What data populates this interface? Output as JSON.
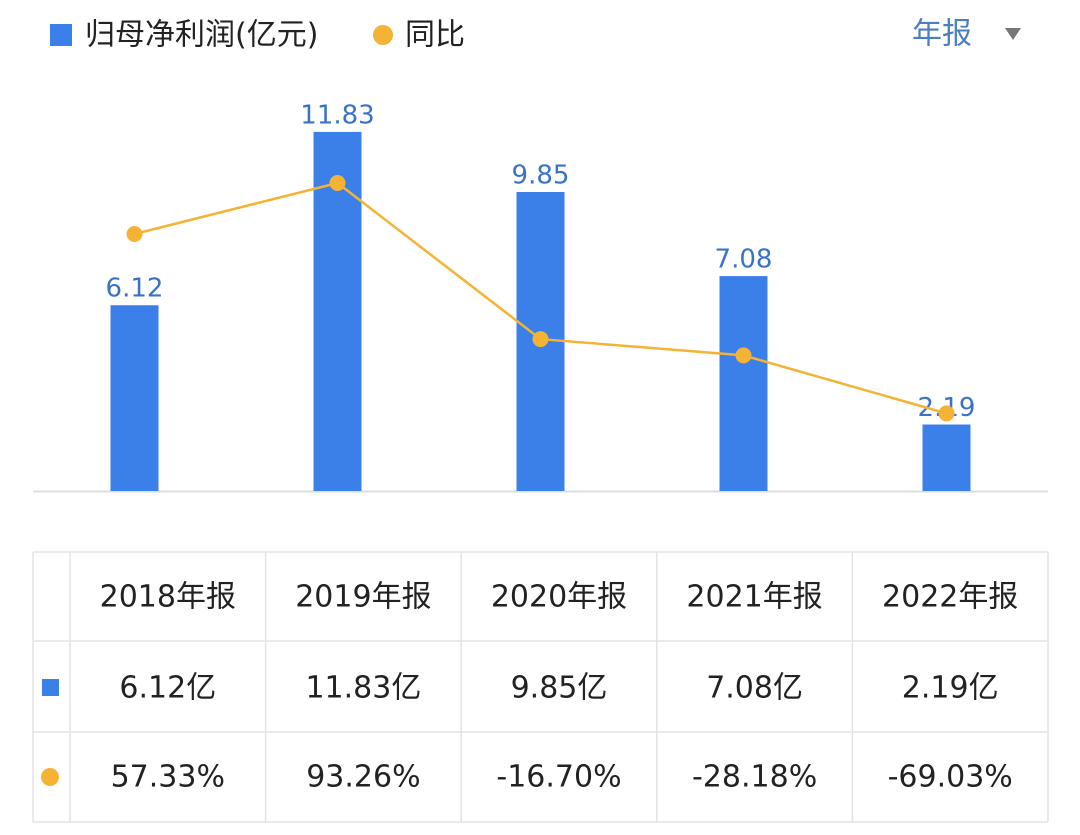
{
  "chart_data": {
    "type": "bar-line",
    "categories": [
      "2018年报",
      "2019年报",
      "2020年报",
      "2021年报",
      "2022年报"
    ],
    "series": [
      {
        "name": "归母净利润(亿元)",
        "color": "#3b7fe8",
        "type": "bar",
        "values": [
          6.12,
          11.83,
          9.85,
          7.08,
          2.19
        ],
        "value_labels": [
          "6.12亿",
          "11.83亿",
          "9.85亿",
          "7.08亿",
          "2.19亿"
        ]
      },
      {
        "name": "同比",
        "color": "#f5b335",
        "type": "line",
        "axis": "y2",
        "values": [
          57.33,
          93.26,
          -16.7,
          -28.18,
          -69.03
        ],
        "value_labels": [
          "57.33%",
          "93.26%",
          "-16.70%",
          "-28.18%",
          "-69.03%"
        ]
      }
    ],
    "ylim": [
      0,
      13.54
    ],
    "y2lim": [
      -123.7,
      165.8
    ],
    "period_selector": "年报"
  }
}
